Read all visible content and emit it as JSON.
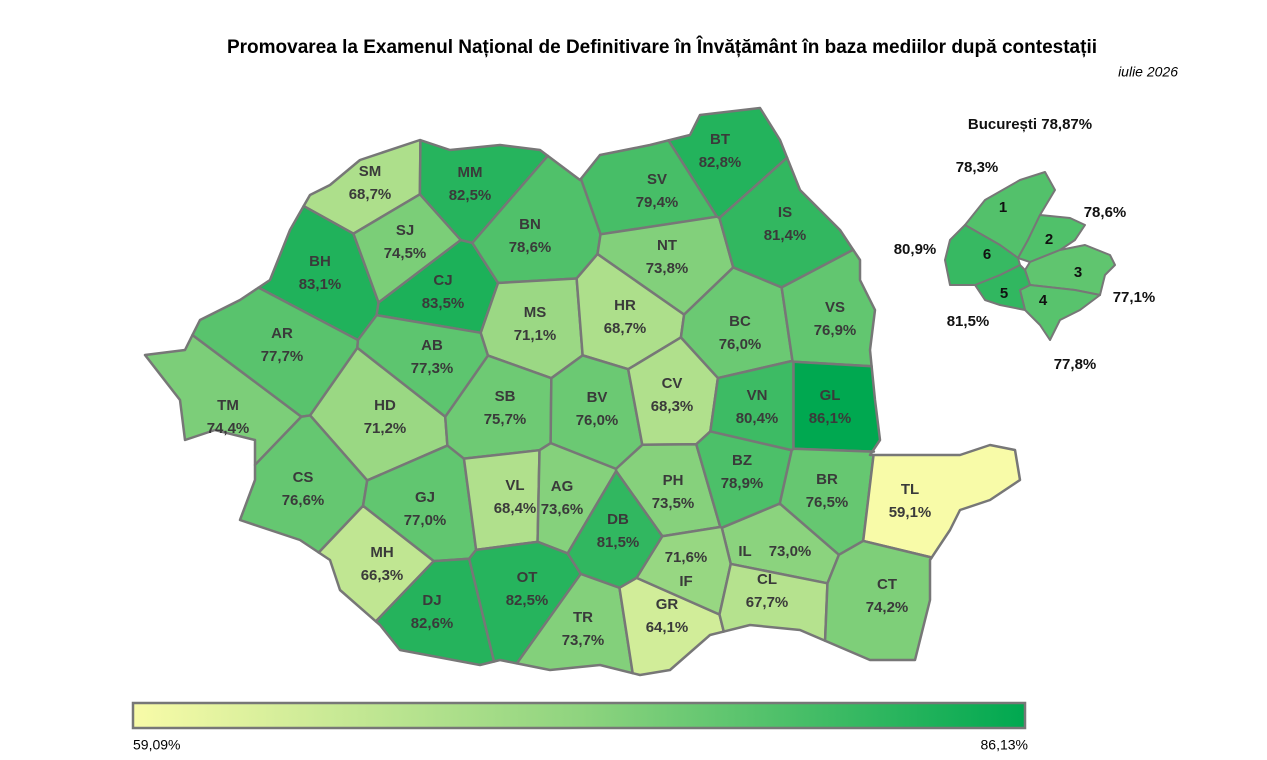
{
  "title": "Promovarea la Examenul Național de Definitivare în Învățământ în baza mediilor după contestații",
  "subtitle": "iulie 2026",
  "counties": [
    {
      "code": "SM",
      "value": 68.7,
      "value_label": "68,7%"
    },
    {
      "code": "MM",
      "value": 82.5,
      "value_label": "82,5%"
    },
    {
      "code": "BT",
      "value": 82.8,
      "value_label": "82,8%"
    },
    {
      "code": "SV",
      "value": 79.4,
      "value_label": "79,4%"
    },
    {
      "code": "BH",
      "value": 83.1,
      "value_label": "83,1%"
    },
    {
      "code": "SJ",
      "value": 74.5,
      "value_label": "74,5%"
    },
    {
      "code": "CJ",
      "value": 83.5,
      "value_label": "83,5%"
    },
    {
      "code": "BN",
      "value": 78.6,
      "value_label": "78,6%"
    },
    {
      "code": "NT",
      "value": 73.8,
      "value_label": "73,8%"
    },
    {
      "code": "IS",
      "value": 81.4,
      "value_label": "81,4%"
    },
    {
      "code": "AR",
      "value": 77.7,
      "value_label": "77,7%"
    },
    {
      "code": "AB",
      "value": 77.3,
      "value_label": "77,3%"
    },
    {
      "code": "MS",
      "value": 71.1,
      "value_label": "71,1%"
    },
    {
      "code": "HR",
      "value": 68.7,
      "value_label": "68,7%"
    },
    {
      "code": "BC",
      "value": 76.0,
      "value_label": "76,0%"
    },
    {
      "code": "VS",
      "value": 76.9,
      "value_label": "76,9%"
    },
    {
      "code": "TM",
      "value": 74.4,
      "value_label": "74,4%"
    },
    {
      "code": "HD",
      "value": 71.2,
      "value_label": "71,2%"
    },
    {
      "code": "SB",
      "value": 75.7,
      "value_label": "75,7%"
    },
    {
      "code": "BV",
      "value": 76.0,
      "value_label": "76,0%"
    },
    {
      "code": "CV",
      "value": 68.3,
      "value_label": "68,3%"
    },
    {
      "code": "VN",
      "value": 80.4,
      "value_label": "80,4%"
    },
    {
      "code": "GL",
      "value": 86.1,
      "value_label": "86,1%"
    },
    {
      "code": "CS",
      "value": 76.6,
      "value_label": "76,6%"
    },
    {
      "code": "GJ",
      "value": 77.0,
      "value_label": "77,0%"
    },
    {
      "code": "VL",
      "value": 68.4,
      "value_label": "68,4%"
    },
    {
      "code": "AG",
      "value": 73.6,
      "value_label": "73,6%"
    },
    {
      "code": "PH",
      "value": 73.5,
      "value_label": "73,5%"
    },
    {
      "code": "BZ",
      "value": 78.9,
      "value_label": "78,9%"
    },
    {
      "code": "BR",
      "value": 76.5,
      "value_label": "76,5%"
    },
    {
      "code": "TL",
      "value": 59.1,
      "value_label": "59,1%"
    },
    {
      "code": "MH",
      "value": 66.3,
      "value_label": "66,3%"
    },
    {
      "code": "DJ",
      "value": 82.6,
      "value_label": "82,6%"
    },
    {
      "code": "OT",
      "value": 82.5,
      "value_label": "82,5%"
    },
    {
      "code": "DB",
      "value": 81.5,
      "value_label": "81,5%"
    },
    {
      "code": "IL",
      "value": 73.0,
      "value_label": "73,0%"
    },
    {
      "code": "TR",
      "value": 73.7,
      "value_label": "73,7%"
    },
    {
      "code": "GR",
      "value": 64.1,
      "value_label": "64,1%"
    },
    {
      "code": "IF",
      "value": 71.6,
      "value_label": "71,6%"
    },
    {
      "code": "CL",
      "value": 67.7,
      "value_label": "67,7%"
    },
    {
      "code": "CT",
      "value": 74.2,
      "value_label": "74,2%"
    }
  ],
  "bucharest": {
    "title": "București 78,87%",
    "sectors": [
      {
        "label": "1",
        "value": 78.3,
        "value_label": "78,3%"
      },
      {
        "label": "2",
        "value": 78.6,
        "value_label": "78,6%"
      },
      {
        "label": "3",
        "value": 77.1,
        "value_label": "77,1%"
      },
      {
        "label": "4",
        "value": 77.8,
        "value_label": "77,8%"
      },
      {
        "label": "5",
        "value": 81.5,
        "value_label": "81,5%"
      },
      {
        "label": "6",
        "value": 80.9,
        "value_label": "80,9%"
      }
    ]
  },
  "legend": {
    "min": {
      "value": 59.09,
      "label": "59,09%"
    },
    "max": {
      "value": 86.13,
      "label": "86,13%"
    }
  }
}
